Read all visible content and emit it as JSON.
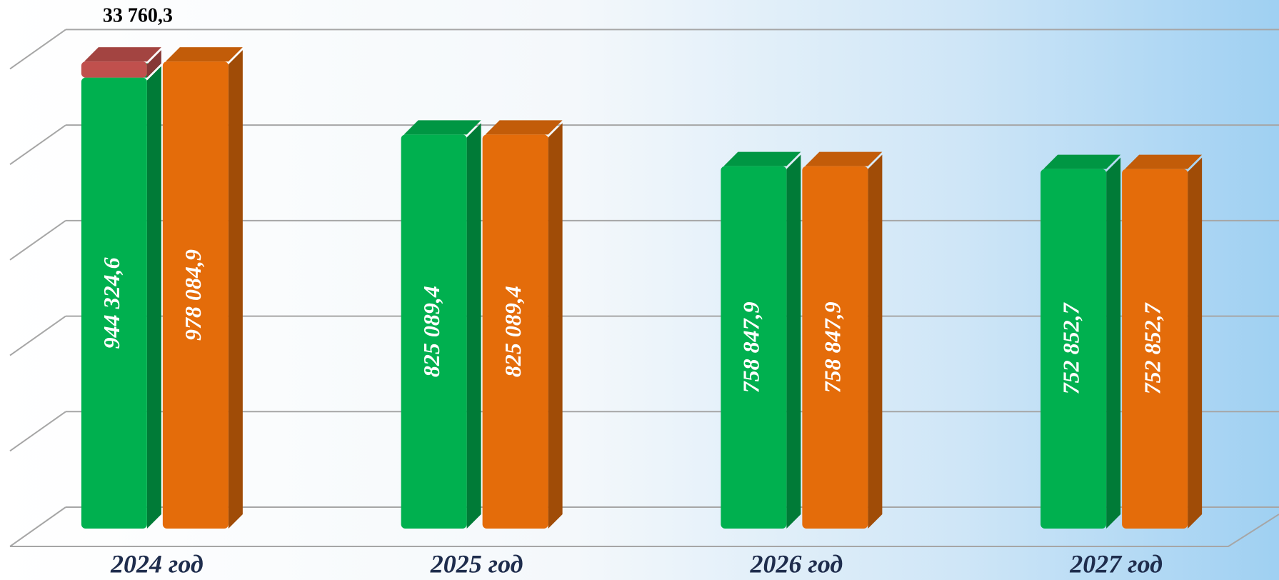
{
  "chart_data": {
    "type": "bar3d",
    "categories": [
      "2024 год",
      "2025 год",
      "2026 год",
      "2027 год"
    ],
    "series": [
      {
        "color": "#00b04f",
        "values": [
          944324.6,
          825089.4,
          758847.9,
          752852.7
        ],
        "value_labels": [
          "944 324,6",
          "825 089,4",
          "758 847,9",
          "752 852,7"
        ]
      },
      {
        "color": "#e46c0a",
        "values": [
          978084.9,
          825089.4,
          758847.9,
          752852.7
        ],
        "value_labels": [
          "978 084,9",
          "825 089,4",
          "758 847,9",
          "752 852,7"
        ]
      },
      {
        "color": "#c0504d",
        "stack_on": 0,
        "values": [
          33760.3,
          null,
          null,
          null
        ],
        "value_labels": [
          "33 760,3",
          null,
          null,
          null
        ]
      }
    ],
    "ylim": [
      0,
      1050000
    ],
    "yticks": [
      0,
      200000,
      400000,
      600000,
      800000,
      1000000
    ],
    "grid": true
  }
}
